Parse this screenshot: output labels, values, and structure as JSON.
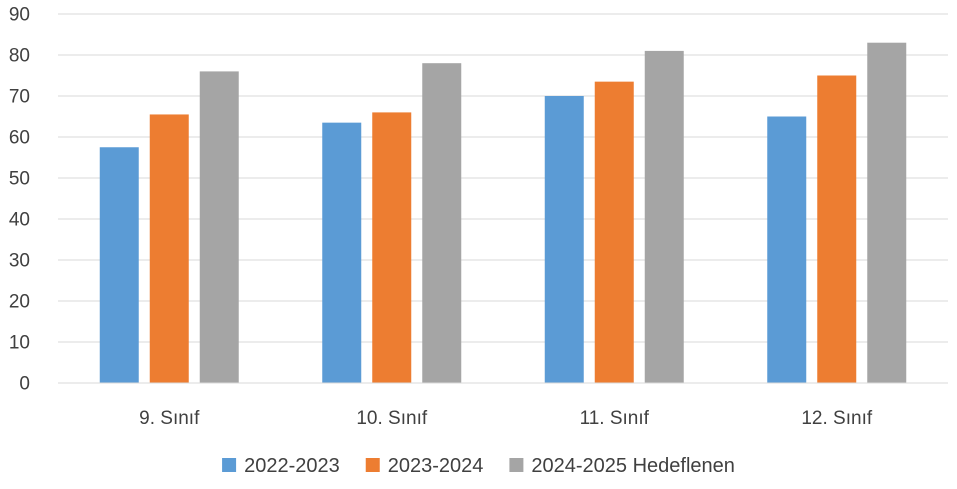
{
  "chart_data": {
    "type": "bar",
    "title": "",
    "xlabel": "",
    "ylabel": "",
    "categories": [
      "9. Sınıf",
      "10. Sınıf",
      "11. Sınıf",
      "12. Sınıf"
    ],
    "series": [
      {
        "name": "2022-2023",
        "color": "#5B9BD5",
        "values": [
          57.5,
          63.5,
          70,
          65
        ]
      },
      {
        "name": "2023-2024",
        "color": "#ED7D31",
        "values": [
          65.5,
          66,
          73.5,
          75
        ]
      },
      {
        "name": "2024-2025 Hedeflenen",
        "color": "#A5A5A5",
        "values": [
          76,
          78,
          81,
          83
        ]
      }
    ],
    "ylim": [
      0,
      90
    ],
    "yticks": [
      0,
      10,
      20,
      30,
      40,
      50,
      60,
      70,
      80,
      90
    ],
    "grid": true,
    "legend_position": "bottom"
  }
}
